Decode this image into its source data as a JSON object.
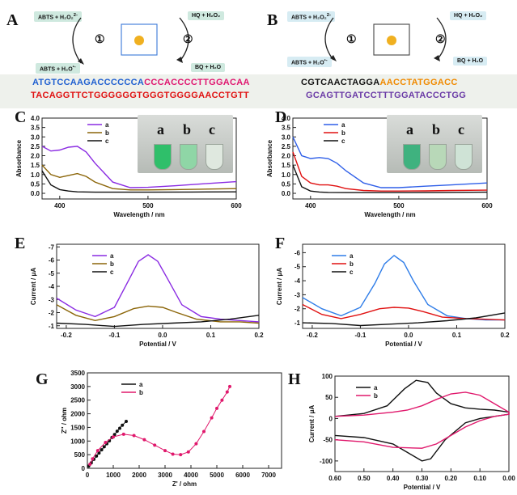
{
  "panel_labels": {
    "A": "A",
    "B": "B",
    "C": "C",
    "D": "D",
    "E": "E",
    "F": "F",
    "G": "G",
    "H": "H"
  },
  "scheme_A": {
    "top_left": "ABTS + H₂O₂",
    "top_left_sup": "2-",
    "top_right": "HQ + H₂O₂",
    "bottom_left": "ABTS + H₂O",
    "bottom_left_sup": "•-",
    "bottom_right": "BQ + H₂O",
    "cycle1": "①",
    "cycle2": "②",
    "seq1_blue": "ATGTCCAAGACCCCCCA",
    "seq1_pink": "CCCACCCCTTGGACAA",
    "seq2": "TACAGGTTCTGGGGGGTGGGTGGGGAACCTGTT"
  },
  "scheme_B": {
    "top_left": "ABTS + H₂O₂",
    "top_left_sup": "2-",
    "top_right": "HQ + H₂O₂",
    "bottom_left": "ABTS + H₂O",
    "bottom_left_sup": "•-",
    "bottom_right": "BQ + H₂O",
    "cycle1": "①",
    "cycle2": "②",
    "seq1_black": "CGTCAACTAGGA",
    "seq1_orange": "AACCTATGGACC",
    "seq2": "GCAGTTGATCCTTTGGATACCCTGG"
  },
  "chart_data": [
    {
      "panel": "C",
      "type": "line",
      "xlabel": "Wavelength / nm",
      "ylabel": "Absorbance",
      "xlim": [
        380,
        600
      ],
      "ylim": [
        -0.3,
        4.0
      ],
      "xticks": [
        400,
        500,
        600
      ],
      "yticks": [
        0.0,
        0.5,
        1.0,
        1.5,
        2.0,
        2.5,
        3.0,
        3.5,
        4.0
      ],
      "series": [
        {
          "name": "a",
          "color": "#8a2be2",
          "x": [
            380,
            390,
            400,
            410,
            420,
            430,
            440,
            460,
            480,
            500,
            530,
            560,
            600
          ],
          "y": [
            2.5,
            2.25,
            2.3,
            2.45,
            2.5,
            2.2,
            1.6,
            0.6,
            0.3,
            0.32,
            0.4,
            0.5,
            0.62
          ]
        },
        {
          "name": "b",
          "color": "#8b6508",
          "x": [
            380,
            390,
            400,
            410,
            420,
            430,
            440,
            460,
            480,
            500,
            530,
            560,
            600
          ],
          "y": [
            1.5,
            1.0,
            0.85,
            0.95,
            1.05,
            0.9,
            0.6,
            0.25,
            0.18,
            0.18,
            0.2,
            0.22,
            0.25
          ]
        },
        {
          "name": "c",
          "color": "#111111",
          "x": [
            380,
            390,
            400,
            410,
            420,
            440,
            460,
            500,
            550,
            600
          ],
          "y": [
            1.2,
            0.45,
            0.2,
            0.12,
            0.08,
            0.06,
            0.06,
            0.06,
            0.07,
            0.08
          ]
        }
      ],
      "photo_labels": [
        "a",
        "b",
        "c"
      ],
      "vial_colors": [
        "#2fbf6a",
        "#8fd6a6",
        "#dfe8df"
      ]
    },
    {
      "panel": "D",
      "type": "line",
      "xlabel": "Wavelength / nm",
      "ylabel": "Absorbance",
      "xlim": [
        380,
        600
      ],
      "ylim": [
        -0.3,
        4.0
      ],
      "xticks": [
        400,
        500,
        600
      ],
      "yticks": [
        0.0,
        0.5,
        1.0,
        1.5,
        2.0,
        2.5,
        3.0,
        3.5,
        4.0
      ],
      "series": [
        {
          "name": "a",
          "color": "#2f5fe8",
          "x": [
            380,
            390,
            400,
            410,
            420,
            430,
            440,
            460,
            480,
            500,
            530,
            560,
            600
          ],
          "y": [
            3.0,
            2.0,
            1.85,
            1.9,
            1.85,
            1.6,
            1.2,
            0.55,
            0.3,
            0.3,
            0.38,
            0.45,
            0.55
          ]
        },
        {
          "name": "b",
          "color": "#e01010",
          "x": [
            380,
            390,
            400,
            410,
            420,
            430,
            440,
            460,
            480,
            500,
            530,
            560,
            600
          ],
          "y": [
            2.2,
            0.9,
            0.55,
            0.45,
            0.45,
            0.38,
            0.25,
            0.15,
            0.12,
            0.12,
            0.13,
            0.15,
            0.17
          ]
        },
        {
          "name": "c",
          "color": "#111111",
          "x": [
            380,
            390,
            400,
            410,
            420,
            440,
            460,
            500,
            550,
            600
          ],
          "y": [
            1.5,
            0.35,
            0.12,
            0.07,
            0.05,
            0.04,
            0.04,
            0.04,
            0.05,
            0.06
          ]
        }
      ],
      "photo_labels": [
        "a",
        "b",
        "c"
      ],
      "vial_colors": [
        "#3fb27f",
        "#b8d8b8",
        "#cfe3d6"
      ]
    },
    {
      "panel": "E",
      "type": "line",
      "xlabel": "Potential / V",
      "ylabel": "Current / μA",
      "xlim": [
        -0.22,
        0.2
      ],
      "ylim": [
        -0.8,
        -7.2
      ],
      "xticks": [
        -0.2,
        -0.1,
        0.0,
        0.1,
        0.2
      ],
      "yticks": [
        -1.0,
        -2.0,
        -3.0,
        -4.0,
        -5.0,
        -6.0,
        -7.0
      ],
      "series": [
        {
          "name": "a",
          "color": "#8a2be2",
          "x": [
            -0.22,
            -0.18,
            -0.14,
            -0.1,
            -0.07,
            -0.05,
            -0.03,
            -0.01,
            0.01,
            0.04,
            0.08,
            0.12,
            0.16,
            0.2
          ],
          "y": [
            -3.1,
            -2.2,
            -1.7,
            -2.4,
            -4.5,
            -5.9,
            -6.4,
            -5.9,
            -4.6,
            -2.6,
            -1.7,
            -1.5,
            -1.4,
            -1.3
          ]
        },
        {
          "name": "b",
          "color": "#8b6508",
          "x": [
            -0.22,
            -0.18,
            -0.14,
            -0.1,
            -0.06,
            -0.03,
            0.0,
            0.03,
            0.07,
            0.12,
            0.16,
            0.2
          ],
          "y": [
            -2.6,
            -1.8,
            -1.4,
            -1.7,
            -2.3,
            -2.5,
            -2.4,
            -2.0,
            -1.5,
            -1.3,
            -1.3,
            -1.2
          ]
        },
        {
          "name": "c",
          "color": "#111111",
          "x": [
            -0.22,
            -0.16,
            -0.1,
            -0.04,
            0.02,
            0.08,
            0.14,
            0.2
          ],
          "y": [
            -1.2,
            -1.1,
            -0.95,
            -1.1,
            -1.2,
            -1.3,
            -1.5,
            -1.8
          ]
        }
      ]
    },
    {
      "panel": "F",
      "type": "line",
      "xlabel": "Potential / V",
      "ylabel": "Current / μA",
      "xlim": [
        -0.22,
        0.2
      ],
      "ylim": [
        -0.6,
        -6.6
      ],
      "xticks": [
        -0.2,
        -0.1,
        0.0,
        0.1,
        0.2
      ],
      "yticks": [
        -1.0,
        -2.0,
        -3.0,
        -4.0,
        -5.0,
        -6.0
      ],
      "series": [
        {
          "name": "a",
          "color": "#2f7de8",
          "x": [
            -0.22,
            -0.18,
            -0.14,
            -0.1,
            -0.07,
            -0.05,
            -0.03,
            -0.01,
            0.01,
            0.04,
            0.08,
            0.12,
            0.16,
            0.2
          ],
          "y": [
            -2.8,
            -2.0,
            -1.5,
            -2.1,
            -3.8,
            -5.2,
            -5.8,
            -5.3,
            -4.0,
            -2.3,
            -1.5,
            -1.3,
            -1.2,
            -1.2
          ]
        },
        {
          "name": "b",
          "color": "#e01010",
          "x": [
            -0.22,
            -0.18,
            -0.14,
            -0.1,
            -0.06,
            -0.03,
            0.0,
            0.03,
            0.07,
            0.12,
            0.16,
            0.2
          ],
          "y": [
            -2.3,
            -1.6,
            -1.3,
            -1.6,
            -2.0,
            -2.1,
            -2.05,
            -1.8,
            -1.4,
            -1.3,
            -1.25,
            -1.2
          ]
        },
        {
          "name": "c",
          "color": "#111111",
          "x": [
            -0.22,
            -0.16,
            -0.1,
            -0.04,
            0.02,
            0.08,
            0.14,
            0.2
          ],
          "y": [
            -1.0,
            -0.95,
            -0.8,
            -0.9,
            -1.0,
            -1.15,
            -1.35,
            -1.7
          ]
        }
      ]
    },
    {
      "panel": "G",
      "type": "scatter",
      "xlabel": "Z' / ohm",
      "ylabel": "Z'' / ohm",
      "xlim": [
        0,
        7500
      ],
      "ylim": [
        0,
        3500
      ],
      "xticks": [
        0,
        1000,
        2000,
        3000,
        4000,
        5000,
        6000,
        7000
      ],
      "yticks": [
        0,
        500,
        1000,
        1500,
        2000,
        2500,
        3000,
        3500
      ],
      "series": [
        {
          "name": "a",
          "color": "#111111",
          "x": [
            50,
            150,
            250,
            350,
            450,
            550,
            650,
            750,
            850,
            950,
            1050,
            1150,
            1250,
            1350,
            1500
          ],
          "y": [
            80,
            200,
            330,
            450,
            560,
            680,
            790,
            900,
            1010,
            1130,
            1240,
            1360,
            1470,
            1580,
            1720
          ]
        },
        {
          "name": "b",
          "color": "#e0186c",
          "x": [
            100,
            200,
            400,
            700,
            1000,
            1400,
            1800,
            2200,
            2600,
            3000,
            3300,
            3600,
            3900,
            4200,
            4500,
            4800,
            5000,
            5200,
            5400,
            5500
          ],
          "y": [
            150,
            350,
            650,
            950,
            1150,
            1250,
            1200,
            1050,
            850,
            650,
            520,
            500,
            600,
            900,
            1350,
            1850,
            2200,
            2500,
            2800,
            3000
          ]
        }
      ]
    },
    {
      "panel": "H",
      "type": "line",
      "xlabel": "Potential / V",
      "ylabel": "Current / μA",
      "xlim": [
        0.6,
        0.0
      ],
      "ylim": [
        -125,
        100
      ],
      "xticks": [
        0.6,
        0.5,
        0.4,
        0.3,
        0.2,
        0.1,
        0.0
      ],
      "yticks": [
        -100,
        -50,
        0,
        50,
        100
      ],
      "series": [
        {
          "name": "a",
          "color": "#111111",
          "x": [
            0.6,
            0.5,
            0.4,
            0.35,
            0.3,
            0.27,
            0.22,
            0.15,
            0.1,
            0.05,
            0.0,
            0.0,
            0.05,
            0.1,
            0.15,
            0.2,
            0.25,
            0.28,
            0.32,
            0.36,
            0.42,
            0.5,
            0.6
          ],
          "y": [
            -40,
            -45,
            -60,
            -80,
            -100,
            -95,
            -50,
            -10,
            0,
            5,
            10,
            15,
            20,
            22,
            25,
            35,
            60,
            85,
            90,
            70,
            30,
            12,
            5
          ]
        },
        {
          "name": "b",
          "color": "#e0186c",
          "x": [
            0.6,
            0.5,
            0.4,
            0.3,
            0.25,
            0.2,
            0.15,
            0.1,
            0.05,
            0.0,
            0.0,
            0.05,
            0.1,
            0.15,
            0.2,
            0.25,
            0.3,
            0.35,
            0.4,
            0.5,
            0.6
          ],
          "y": [
            -50,
            -55,
            -68,
            -70,
            -60,
            -40,
            -20,
            -5,
            5,
            10,
            15,
            35,
            55,
            62,
            58,
            45,
            30,
            20,
            15,
            8,
            5
          ]
        }
      ]
    }
  ]
}
